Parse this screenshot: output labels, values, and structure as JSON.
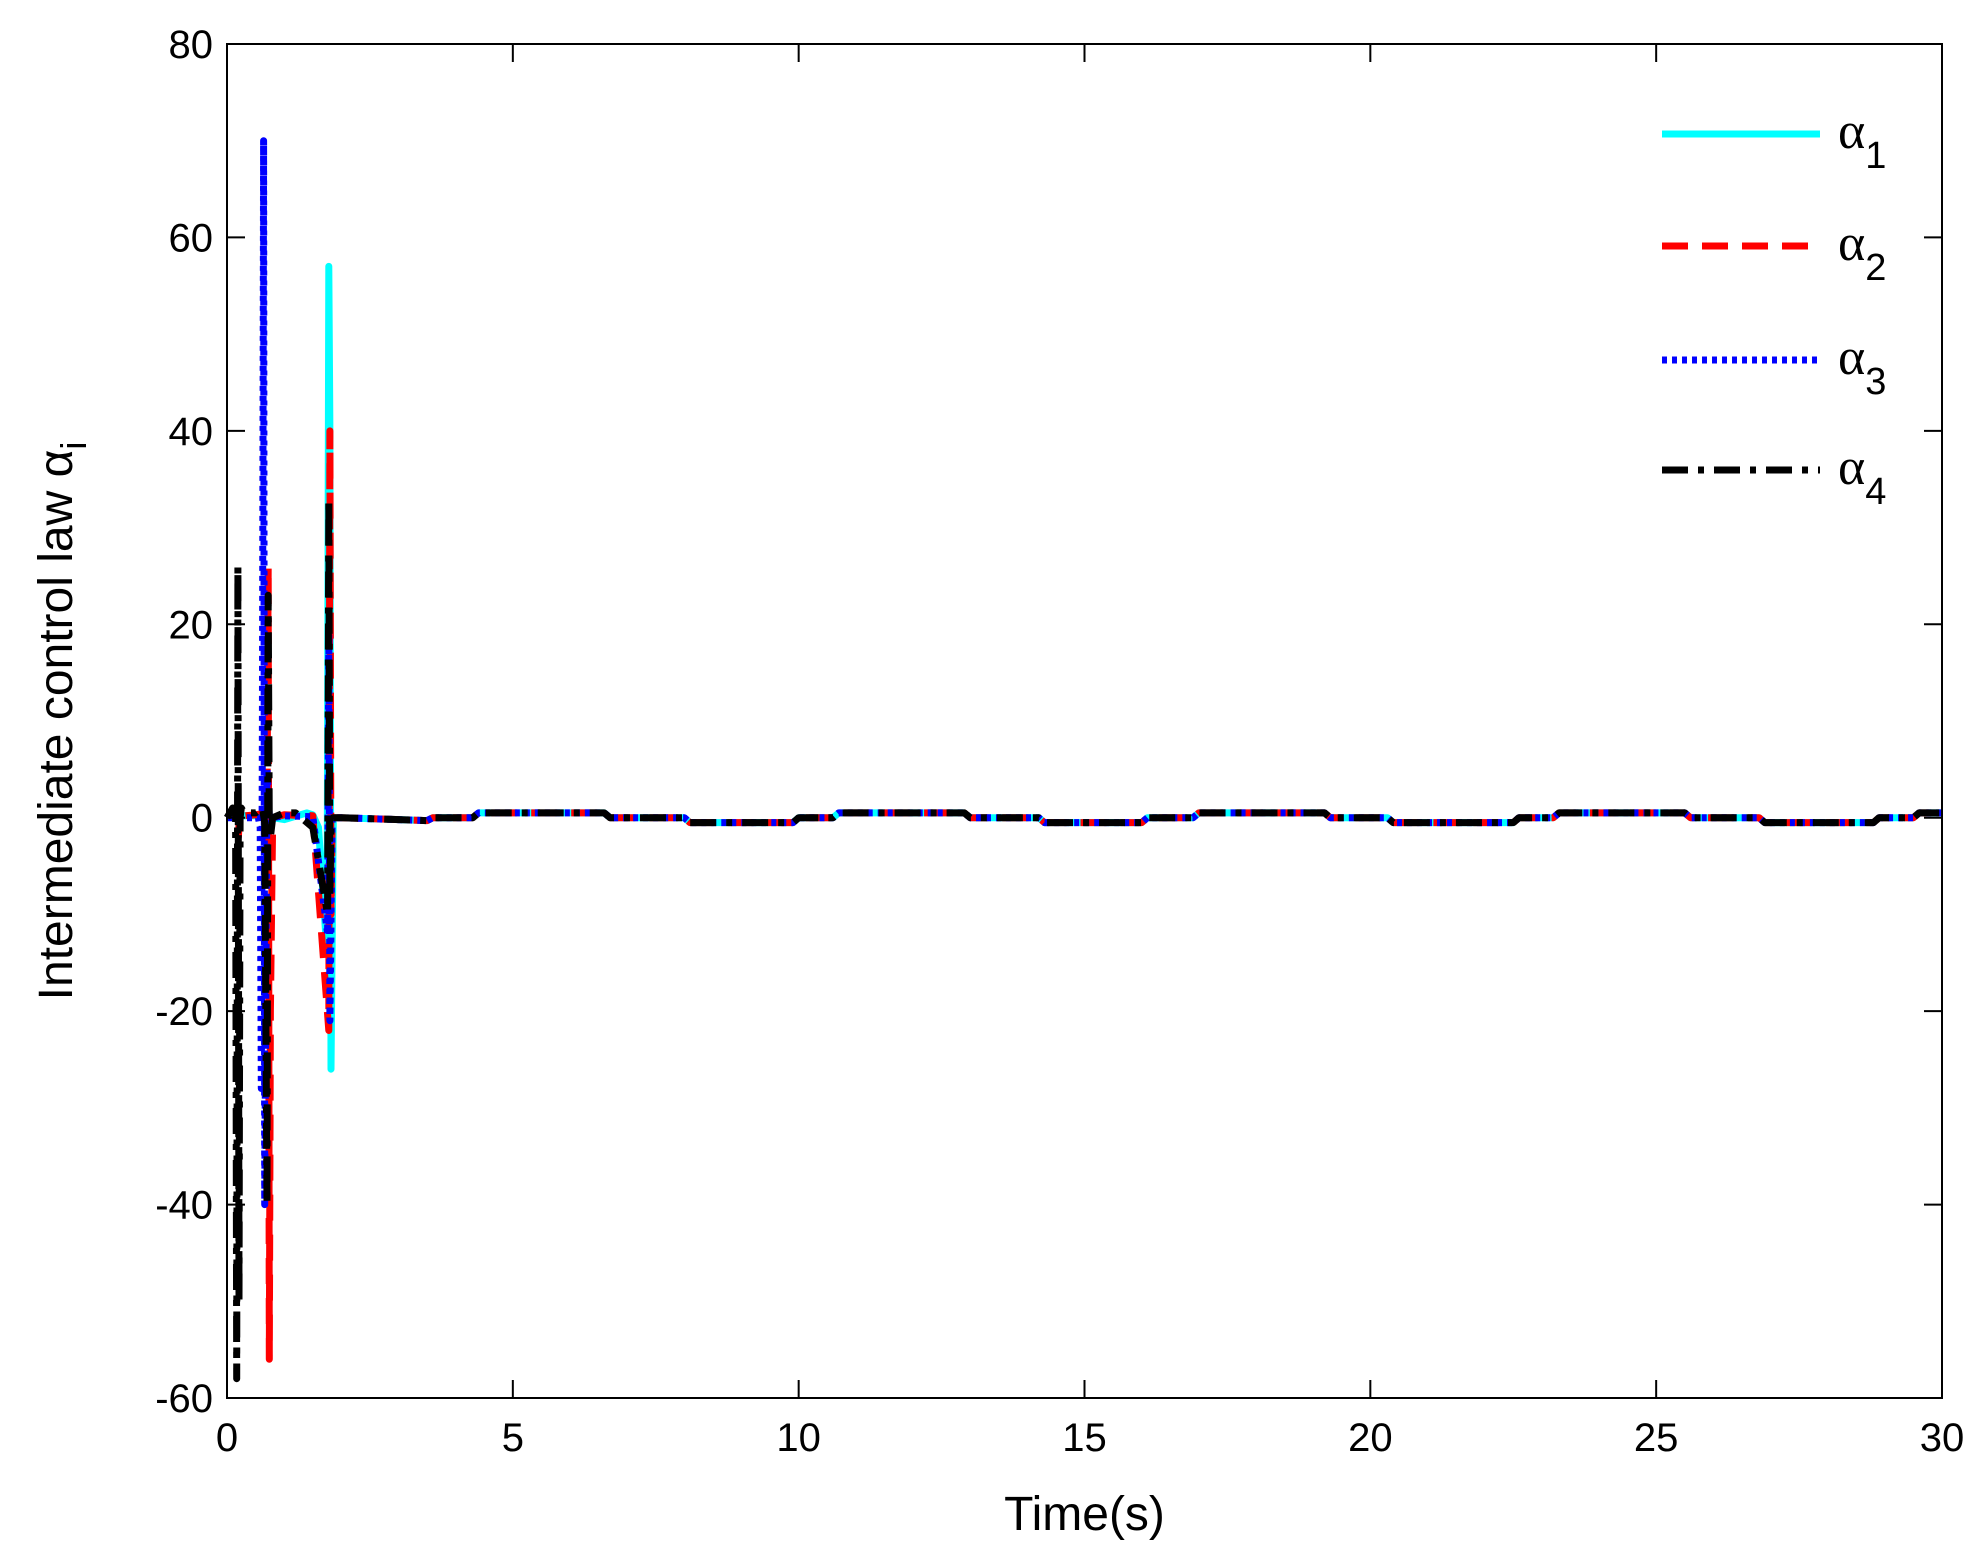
{
  "chart_data": {
    "type": "line",
    "title": "",
    "xlabel": "Time(s)",
    "ylabel": "Intermediate control law α",
    "ylabel_sub": "i",
    "xlim": [
      0,
      30
    ],
    "ylim": [
      -60,
      80
    ],
    "xticks": [
      0,
      5,
      10,
      15,
      20,
      25,
      30
    ],
    "yticks": [
      -60,
      -40,
      -20,
      0,
      20,
      40,
      60,
      80
    ],
    "grid": false,
    "legend_position": "top-right",
    "series": [
      {
        "name": "α",
        "name_sub": "1",
        "color": "#00ffff",
        "style": "solid",
        "x": [
          0,
          0.2,
          0.3,
          0.5,
          0.66,
          0.7,
          0.8,
          1.0,
          1.4,
          1.5,
          1.6,
          1.75,
          1.78,
          1.8,
          1.82,
          1.86,
          2.0,
          3.5,
          3.6,
          4.3,
          4.4,
          6.6,
          6.7,
          8.0,
          8.1,
          9.9,
          10.0,
          10.6,
          10.7,
          12.9,
          13.0,
          14.2,
          14.3,
          16.0,
          16.1,
          16.9,
          17.0,
          19.2,
          19.3,
          20.3,
          20.4,
          22.5,
          22.6,
          23.2,
          23.3,
          25.5,
          25.6,
          26.8,
          26.9,
          28.8,
          28.9,
          29.5,
          29.6,
          30.0
        ],
        "y": [
          0,
          0.1,
          0.2,
          0.2,
          0.3,
          0.2,
          0,
          -0.2,
          0.5,
          0.3,
          -1,
          -14,
          57,
          40,
          -26,
          0,
          0,
          -0.3,
          0,
          0,
          0.5,
          0.5,
          0,
          0,
          -0.5,
          -0.5,
          0,
          0,
          0.5,
          0.5,
          0,
          0,
          -0.5,
          -0.5,
          0,
          0,
          0.5,
          0.5,
          0,
          0,
          -0.5,
          -0.5,
          0,
          0,
          0.5,
          0.5,
          0,
          0,
          -0.5,
          -0.5,
          0,
          0,
          0.5,
          0.5
        ]
      },
      {
        "name": "α",
        "name_sub": "2",
        "color": "#ff0000",
        "style": "dashed",
        "x": [
          0,
          0.15,
          0.18,
          0.2,
          0.22,
          0.25,
          0.3,
          0.5,
          0.7,
          0.72,
          0.74,
          0.76,
          0.8,
          1.0,
          1.5,
          1.78,
          1.8,
          1.82,
          1.84,
          2.0,
          3.5,
          3.6,
          4.3,
          4.4,
          6.6,
          6.7,
          8.0,
          8.1,
          9.9,
          10.0,
          10.6,
          10.7,
          12.9,
          13.0,
          14.2,
          14.3,
          16.0,
          16.1,
          16.9,
          17.0,
          19.2,
          19.3,
          20.3,
          20.4,
          22.5,
          22.6,
          23.2,
          23.3,
          25.5,
          25.6,
          26.8,
          26.9,
          28.8,
          28.9,
          29.5,
          29.6,
          30.0
        ],
        "y": [
          0,
          0.2,
          1,
          -2,
          0.5,
          0,
          0.2,
          0.3,
          0.5,
          26,
          -56,
          -20,
          0,
          0.3,
          0.2,
          -22,
          40,
          -10,
          0,
          0,
          -0.3,
          0,
          0,
          0.5,
          0.5,
          0,
          0,
          -0.5,
          -0.5,
          0,
          0,
          0.5,
          0.5,
          0,
          0,
          -0.5,
          -0.5,
          0,
          0,
          0.5,
          0.5,
          0,
          0,
          -0.5,
          -0.5,
          0,
          0,
          0.5,
          0.5,
          0,
          0,
          -0.5,
          -0.5,
          0,
          0,
          0.5,
          0.5
        ]
      },
      {
        "name": "α",
        "name_sub": "3",
        "color": "#0000ff",
        "style": "dotted",
        "x": [
          0,
          0.2,
          0.4,
          0.55,
          0.58,
          0.6,
          0.62,
          0.64,
          0.66,
          0.7,
          0.75,
          0.8,
          1.0,
          1.5,
          1.76,
          1.78,
          1.8,
          1.84,
          2.0,
          3.5,
          3.6,
          4.3,
          4.4,
          6.6,
          6.7,
          8.0,
          8.1,
          9.9,
          10.0,
          10.6,
          10.7,
          12.9,
          13.0,
          14.2,
          14.3,
          16.0,
          16.1,
          16.9,
          17.0,
          19.2,
          19.3,
          20.3,
          20.4,
          22.5,
          22.6,
          23.2,
          23.3,
          25.5,
          25.6,
          26.8,
          26.9,
          28.8,
          28.9,
          29.5,
          29.6,
          30.0
        ],
        "y": [
          0,
          0,
          0,
          0,
          -1,
          -28,
          10,
          70,
          -40,
          5,
          -1,
          0,
          0.2,
          0.1,
          -12,
          20,
          -21,
          0,
          0,
          -0.3,
          0,
          0,
          0.5,
          0.5,
          0,
          0,
          -0.5,
          -0.5,
          0,
          0,
          0.5,
          0.5,
          0,
          0,
          -0.5,
          -0.5,
          0,
          0,
          0.5,
          0.5,
          0,
          0,
          -0.5,
          -0.5,
          0,
          0,
          0.5,
          0.5,
          0,
          0,
          -0.5,
          -0.5,
          0,
          0,
          0.5,
          0.5
        ]
      },
      {
        "name": "α",
        "name_sub": "4",
        "color": "#000000",
        "style": "dashdot",
        "x": [
          0,
          0.05,
          0.1,
          0.15,
          0.17,
          0.19,
          0.21,
          0.23,
          0.25,
          0.3,
          0.5,
          0.62,
          0.66,
          0.7,
          0.72,
          0.74,
          0.76,
          0.8,
          1.0,
          1.2,
          1.5,
          1.76,
          1.78,
          1.8,
          1.82,
          1.86,
          2.0,
          3.5,
          3.6,
          4.3,
          4.4,
          6.6,
          6.7,
          8.0,
          8.1,
          9.9,
          10.0,
          10.6,
          10.7,
          12.9,
          13.0,
          14.2,
          14.3,
          16.0,
          16.1,
          16.9,
          17.0,
          19.2,
          19.3,
          20.3,
          20.4,
          22.5,
          22.6,
          23.2,
          23.3,
          25.5,
          25.6,
          26.8,
          26.9,
          28.8,
          28.9,
          29.5,
          29.6,
          30.0
        ],
        "y": [
          0,
          0.5,
          1,
          0.5,
          -58,
          26,
          -50,
          0,
          1,
          0.5,
          0.5,
          1,
          -0.5,
          -40,
          23,
          -1,
          -2,
          0,
          0.5,
          0.5,
          -1,
          -10,
          33,
          -8,
          -1,
          0,
          0,
          -0.3,
          0,
          0,
          0.5,
          0.5,
          0,
          0,
          -0.5,
          -0.5,
          0,
          0,
          0.5,
          0.5,
          0,
          0,
          -0.5,
          -0.5,
          0,
          0,
          0.5,
          0.5,
          0,
          0,
          -0.5,
          -0.5,
          0,
          0,
          0.5,
          0.5,
          0,
          0,
          -0.5,
          -0.5,
          0,
          0,
          0.5,
          0.5
        ]
      }
    ]
  }
}
